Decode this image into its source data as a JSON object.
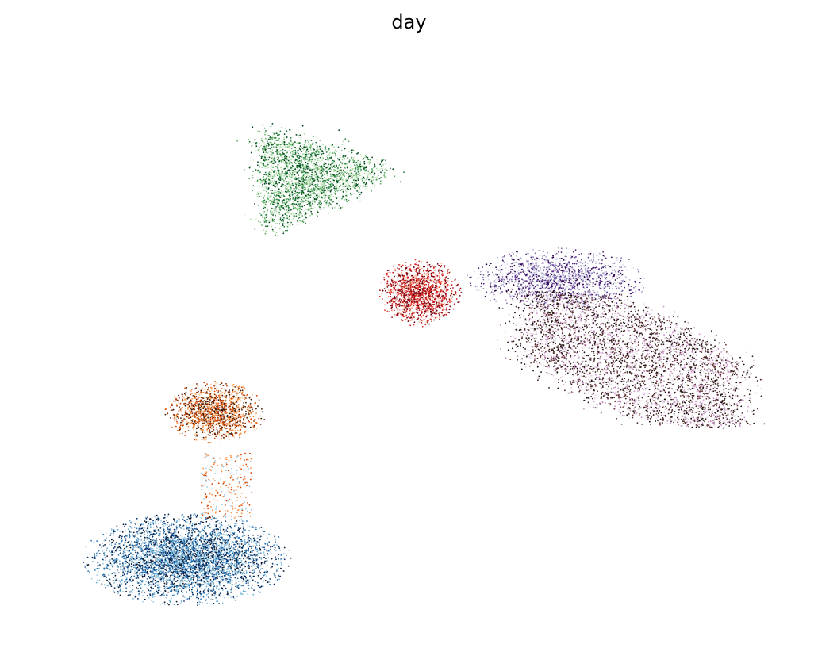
{
  "chart_data": {
    "type": "scatter",
    "title": "day",
    "xlabel": "",
    "ylabel": "",
    "axes_visible": false,
    "grid": false,
    "legend": "none",
    "xlim": [
      0,
      100
    ],
    "ylim": [
      0,
      100
    ],
    "point_size": "tiny",
    "clusters": [
      {
        "name": "",
        "shape": "rounded-triangle",
        "colors": [
          "#00441b",
          "#1b7837",
          "#5aae61",
          "#a6dba0",
          "#d9f0d3"
        ],
        "center": [
          35.5,
          79.5
        ],
        "spread": [
          10.5,
          9.5
        ],
        "n_points": 2600
      },
      {
        "name": "",
        "shape": "oval",
        "colors": [
          "#67000d",
          "#a50f15",
          "#cb181d",
          "#ef3b2c",
          "#fcbba1"
        ],
        "center": [
          51,
          58.5
        ],
        "spread": [
          5,
          5.5
        ],
        "n_points": 1400
      },
      {
        "name": "",
        "shape": "wide-blob",
        "colors": [
          "#2d004b",
          "#542788",
          "#8073ac",
          "#b2abd2",
          "#d8daeb"
        ],
        "center": [
          70,
          61
        ],
        "spread": [
          11,
          5
        ],
        "n_points": 1500
      },
      {
        "name": "",
        "shape": "fan",
        "colors": [
          "#1a0d0d",
          "#3b1f1f",
          "#6b3a3a",
          "#c994c7",
          "#e7d4e8"
        ],
        "center": [
          77,
          42
        ],
        "spread": [
          15,
          12
        ],
        "n_points": 4200
      },
      {
        "name": "",
        "shape": "mushroom-cap",
        "colors": [
          "#3b1600",
          "#7f2704",
          "#d94801",
          "#fd8d3c",
          "#fdd0a2"
        ],
        "center": [
          23,
          36.5
        ],
        "spread": [
          6,
          5
        ],
        "n_points": 1400
      },
      {
        "name": "",
        "shape": "stalk",
        "colors": [
          "#d94801",
          "#fd8d3c",
          "#9ecae1"
        ],
        "center": [
          24.5,
          23
        ],
        "spread": [
          3.5,
          6
        ],
        "n_points": 250
      },
      {
        "name": "",
        "shape": "ellipse-base",
        "colors": [
          "#08172e",
          "#08306b",
          "#2171b5",
          "#6baed6",
          "#9ecae1"
        ],
        "center": [
          19,
          9.5
        ],
        "spread": [
          12.5,
          7.5
        ],
        "n_points": 4200
      }
    ]
  }
}
